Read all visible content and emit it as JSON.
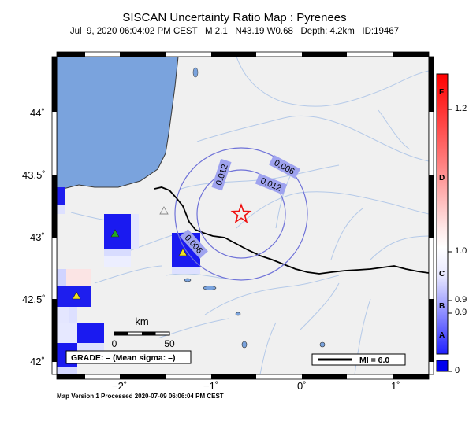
{
  "header": {
    "title": "SISCAN Uncertainty Ratio Map : Pyrenees",
    "subtitle": "Jul  9, 2020 06:04:02 PM CEST   M 2.1   N43.19 W0.68   Depth: 4.2km   ID:19467"
  },
  "footer": {
    "text": "Map Version 1 Processed 2020-07-09 06:06:04 PM CEST"
  },
  "map": {
    "y_ticks": [
      "44˚",
      "43.5˚",
      "43˚",
      "42.5˚",
      "42˚"
    ],
    "x_ticks": [
      "−2˚",
      "−1˚",
      "0˚",
      "1˚"
    ],
    "contour_labels": [
      "0.012",
      "0.006",
      "0.012",
      "0.006"
    ],
    "scale_bar": {
      "unit": "km",
      "start": "0",
      "end": "50"
    },
    "grade_box": "GRADE: – (Mean sigma: –)",
    "mi_legend": "MI = 6.0",
    "colors": {
      "land": "#f0f0f0",
      "sea": "#7aa3dd",
      "contour": "#6f72d8",
      "epicenter": "#ee1111",
      "border": "#000000"
    }
  },
  "colorbar": {
    "value_labels": [
      "1.2",
      "1.0",
      "0.9",
      "0.9",
      "0"
    ],
    "grade_labels": [
      "F",
      "D",
      "C",
      "B",
      "A"
    ]
  }
}
